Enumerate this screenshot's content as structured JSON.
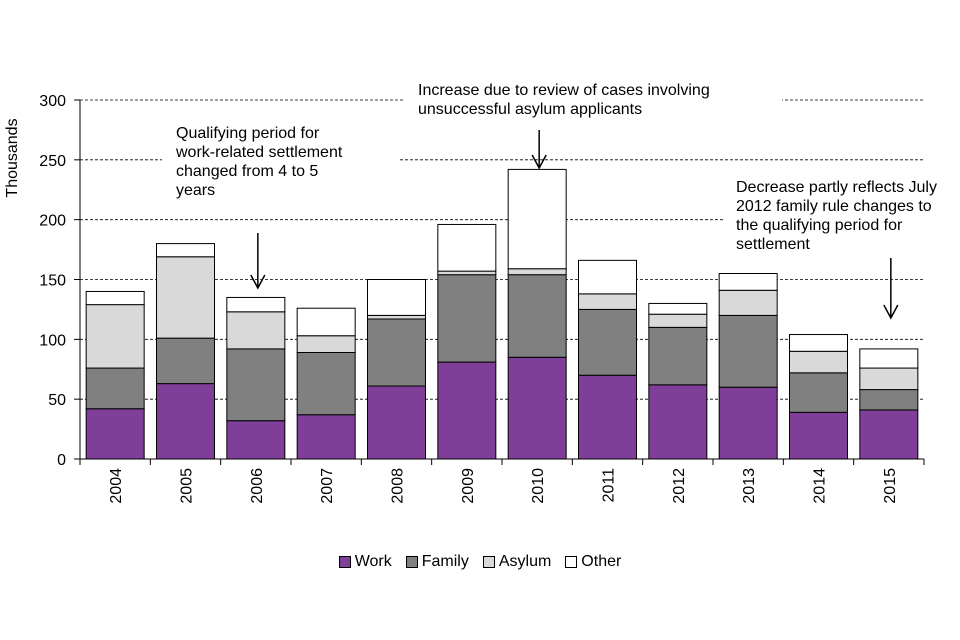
{
  "chart_data": {
    "type": "bar",
    "stacked": true,
    "title": "",
    "xlabel": "",
    "ylabel": "Thousands",
    "ylim": [
      0,
      300
    ],
    "yticks": [
      0,
      50,
      100,
      150,
      200,
      250,
      300
    ],
    "grid": "horizontal-dashed",
    "categories": [
      "2004",
      "2005",
      "2006",
      "2007",
      "2008",
      "2009",
      "2010",
      "2011",
      "2012",
      "2013",
      "2014",
      "2015"
    ],
    "series": [
      {
        "name": "Work",
        "color": "#7f3f98",
        "values": [
          42,
          63,
          32,
          37,
          61,
          81,
          85,
          70,
          62,
          60,
          39,
          41
        ]
      },
      {
        "name": "Family",
        "color": "#808080",
        "values": [
          34,
          38,
          60,
          52,
          56,
          73,
          69,
          55,
          48,
          60,
          33,
          17
        ]
      },
      {
        "name": "Asylum",
        "color": "#d9d9d9",
        "values": [
          53,
          68,
          31,
          14,
          3,
          3,
          5,
          13,
          11,
          21,
          18,
          18
        ]
      },
      {
        "name": "Other",
        "color": "#ffffff",
        "values": [
          11,
          11,
          12,
          23,
          30,
          39,
          83,
          28,
          9,
          14,
          14,
          16
        ]
      }
    ],
    "legend_position": "bottom-center",
    "annotations": [
      {
        "id": "ann-2006",
        "category": "2006",
        "text": "Qualifying period for\nwork-related settlement\nchanged from 4 to 5\nyears"
      },
      {
        "id": "ann-2010",
        "category": "2010",
        "text": "Increase due to review  of cases involving\nunsuccessful asylum applicants"
      },
      {
        "id": "ann-2015",
        "category": "2015",
        "text": "Decrease partly reflects July\n2012 family rule changes to\nthe qualifying period for\nsettlement"
      }
    ]
  }
}
